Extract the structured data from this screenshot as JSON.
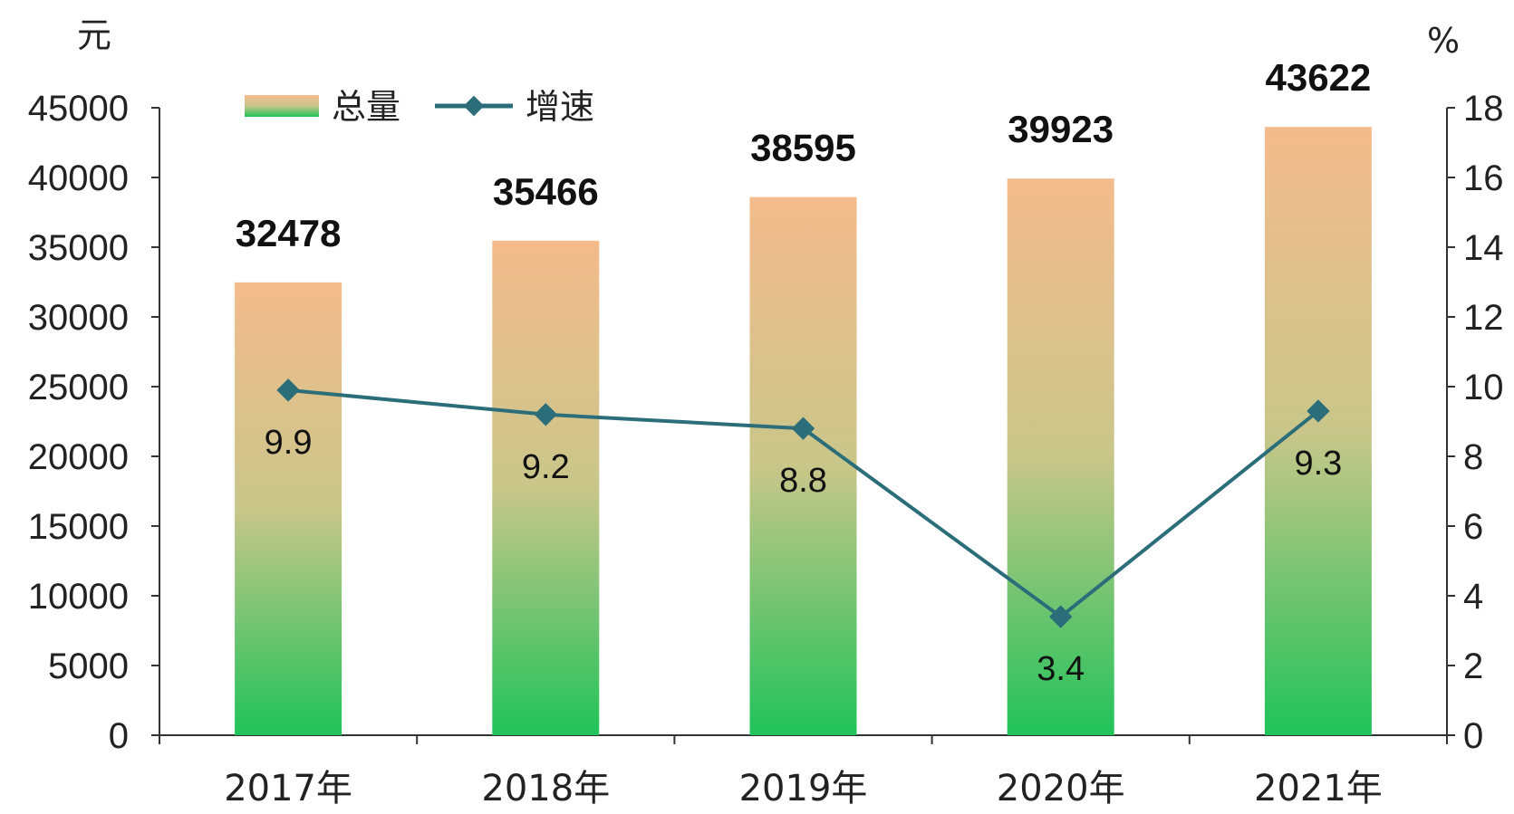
{
  "chart_data": {
    "type": "bar",
    "categories": [
      "2017年",
      "2018年",
      "2019年",
      "2020年",
      "2021年"
    ],
    "series": [
      {
        "name": "总量",
        "type": "bar",
        "axis": "left",
        "values": [
          32478,
          35466,
          38595,
          39923,
          43622
        ]
      },
      {
        "name": "增速",
        "type": "line",
        "axis": "right",
        "values": [
          9.9,
          9.2,
          8.8,
          3.4,
          9.3
        ]
      }
    ],
    "y_left": {
      "unit": "元",
      "range": [
        0,
        45000
      ],
      "ticks": [
        0,
        5000,
        10000,
        15000,
        20000,
        25000,
        30000,
        35000,
        40000,
        45000
      ]
    },
    "y_right": {
      "unit": "%",
      "range": [
        0,
        18
      ],
      "ticks": [
        0,
        2,
        4,
        6,
        8,
        10,
        12,
        14,
        16,
        18
      ]
    },
    "legend": {
      "position": "top-left"
    },
    "grid": false,
    "colors": {
      "bar_top": "#f4bb8c",
      "bar_bottom": "#20c35a",
      "line": "#2b6e7a",
      "axis": "#333333"
    }
  }
}
